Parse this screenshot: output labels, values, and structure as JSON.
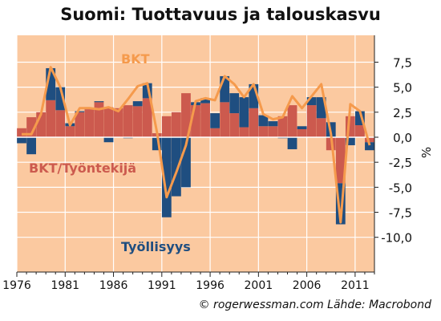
{
  "chart_data": {
    "type": "bar",
    "title": "Suomi: Tuottavuus ja talouskasvu",
    "ylabel": "%",
    "credit": "© rogerwessman.com Lähde: Macrobond",
    "ylim": [
      -10.5,
      8.2
    ],
    "yticks": [
      7.5,
      5.0,
      2.5,
      0.0,
      -2.5,
      -5.0,
      -7.5,
      -10.0
    ],
    "ytick_labels": [
      "7,5",
      "5,0",
      "2,5",
      "0,0",
      "-2,5",
      "-5,0",
      "-7,5",
      "-10,0"
    ],
    "xticks": [
      1976,
      1981,
      1986,
      1991,
      1996,
      2001,
      2006,
      2011
    ],
    "xtick_labels": [
      "1976",
      "1981",
      "1986",
      "1991",
      "1996",
      "2001",
      "2006",
      "2011"
    ],
    "grid": true,
    "stacked": true,
    "years": [
      1976,
      1977,
      1978,
      1979,
      1980,
      1981,
      1982,
      1983,
      1984,
      1985,
      1986,
      1987,
      1988,
      1989,
      1990,
      1991,
      1992,
      1993,
      1994,
      1995,
      1996,
      1997,
      1998,
      1999,
      2000,
      2001,
      2002,
      2003,
      2004,
      2005,
      2006,
      2007,
      2008,
      2009,
      2010,
      2011,
      2012
    ],
    "series": [
      {
        "name": "BKT/Työntekijä",
        "color": "#cc5a4e",
        "values": [
          0.9,
          2.0,
          2.5,
          3.7,
          2.7,
          1.1,
          2.5,
          2.8,
          3.5,
          3.0,
          2.9,
          3.2,
          3.1,
          3.9,
          0.4,
          2.1,
          2.5,
          4.4,
          3.2,
          3.4,
          0.9,
          3.5,
          2.4,
          1.0,
          2.9,
          1.1,
          1.1,
          2.1,
          3.2,
          0.8,
          3.2,
          1.9,
          -1.3,
          -4.6,
          2.1,
          1.2,
          -0.5
        ]
      },
      {
        "name": "Työllisyys",
        "color": "#1f4e80",
        "values": [
          -0.6,
          -1.7,
          0.0,
          3.2,
          2.3,
          0.3,
          0.1,
          0.1,
          0.1,
          -0.5,
          0.0,
          -0.1,
          0.5,
          1.5,
          -1.3,
          -8.0,
          -5.9,
          -5.0,
          0.3,
          0.5,
          1.5,
          2.6,
          2.0,
          3.0,
          2.4,
          1.1,
          0.5,
          -0.1,
          -1.2,
          0.3,
          0.8,
          2.1,
          1.5,
          -4.1,
          -0.8,
          1.4,
          -0.8
        ]
      }
    ],
    "line": {
      "name": "BKT",
      "color": "#f59a4c",
      "values": [
        0.3,
        0.3,
        2.3,
        7.0,
        5.0,
        1.2,
        2.9,
        2.9,
        2.8,
        3.0,
        2.6,
        3.8,
        5.1,
        5.4,
        0.5,
        -6.0,
        -3.5,
        -0.8,
        3.6,
        3.9,
        3.7,
        6.1,
        5.3,
        4.0,
        5.3,
        2.3,
        1.8,
        2.0,
        4.1,
        2.9,
        4.1,
        5.3,
        0.3,
        -8.5,
        3.3,
        2.6,
        -0.8
      ]
    }
  }
}
